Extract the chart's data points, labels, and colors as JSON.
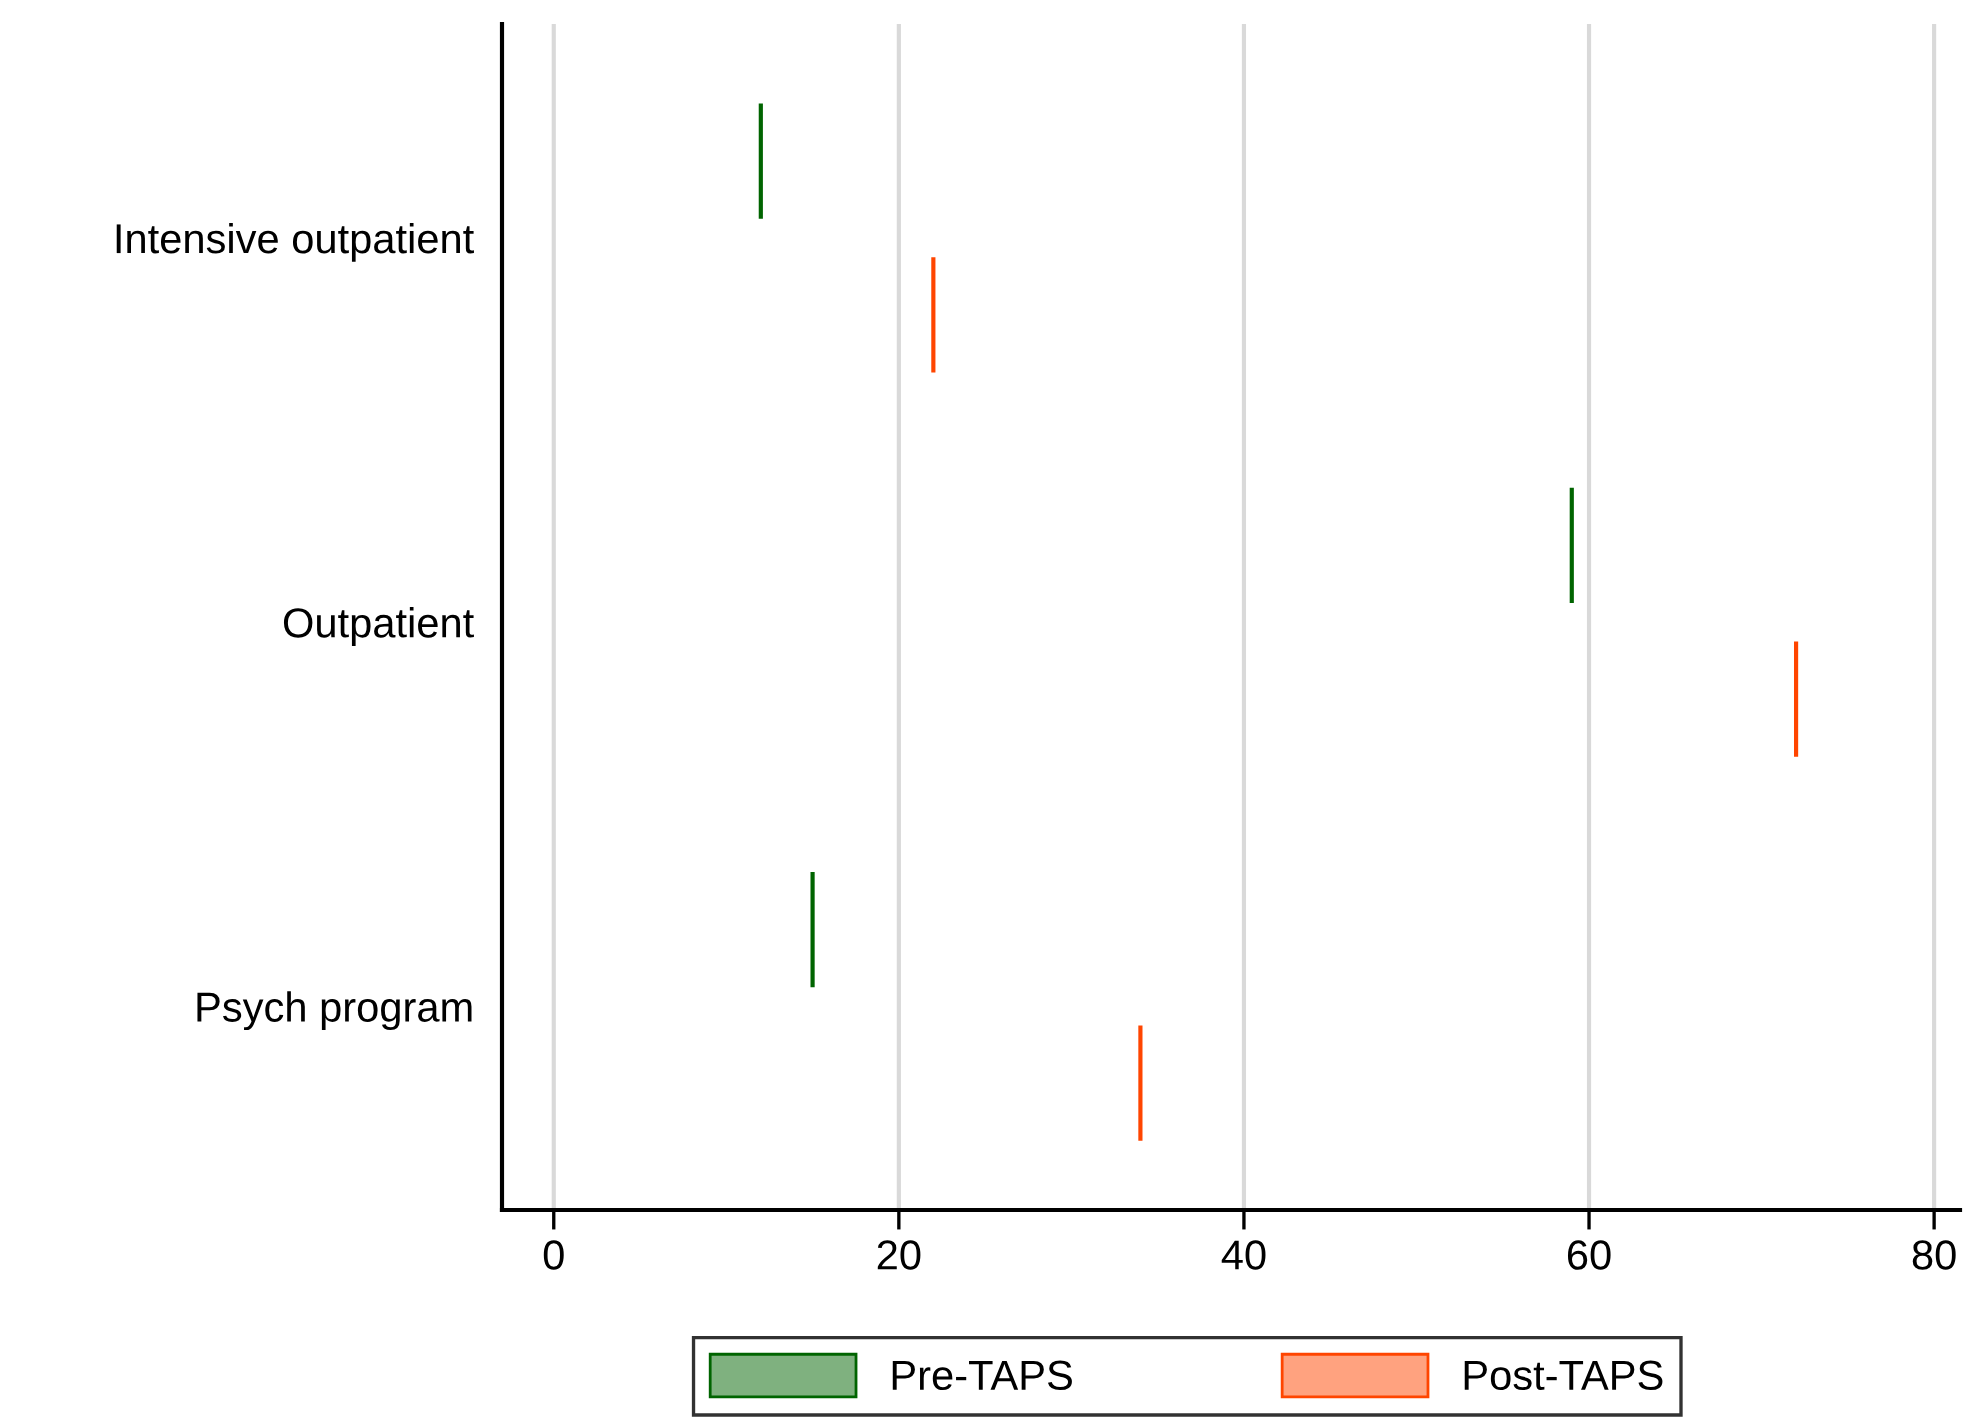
{
  "chart_data": {
    "type": "bar",
    "orientation": "horizontal",
    "categories": [
      "Intensive outpatient",
      "Outpatient",
      "Psych program"
    ],
    "series": [
      {
        "name": "Pre-TAPS",
        "color": "#006400",
        "base": [
          12,
          59,
          15
        ],
        "values": [
          0,
          0,
          0
        ]
      },
      {
        "name": "Post-TAPS",
        "color": "#ff4500",
        "base": [
          22,
          72,
          34
        ],
        "values": [
          0,
          0,
          0
        ]
      }
    ],
    "xlim": [
      -3,
      81.5
    ],
    "xticks": [
      0,
      20,
      40,
      60,
      80
    ],
    "grid": "x",
    "legend": "bottom"
  }
}
